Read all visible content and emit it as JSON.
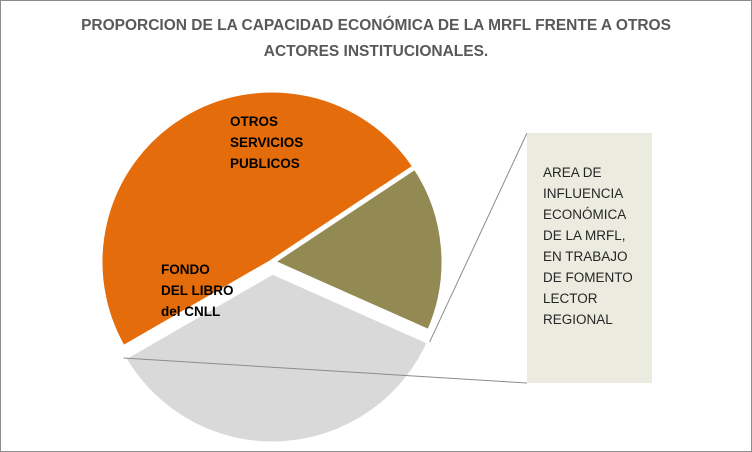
{
  "chart_data": {
    "type": "pie",
    "title": "PROPORCION DE LA CAPACIDAD ECONÓMICA DE LA MRFL FRENTE A OTROS ACTORES INSTITUCIONALES.",
    "slices": [
      {
        "label_lines": [
          "FONDO",
          "DEL LIBRO",
          "del CNLL"
        ],
        "value": 49,
        "color": "#e46c0a"
      },
      {
        "label_lines": [
          "OTROS",
          "SERVICIOS",
          "PUBLICOS"
        ],
        "value": 16,
        "color": "#938953"
      },
      {
        "label_lines": [],
        "value": 35,
        "color": "#d9d9d9",
        "exploded": true
      }
    ],
    "callout": {
      "lines": [
        "AREA DE",
        "INFLUENCIA",
        "ECONÓMICA",
        "DE LA MRFL,",
        "EN TRABAJO",
        "DE FOMENTO",
        "LECTOR",
        "REGIONAL"
      ],
      "background": "#ecebdf"
    }
  }
}
